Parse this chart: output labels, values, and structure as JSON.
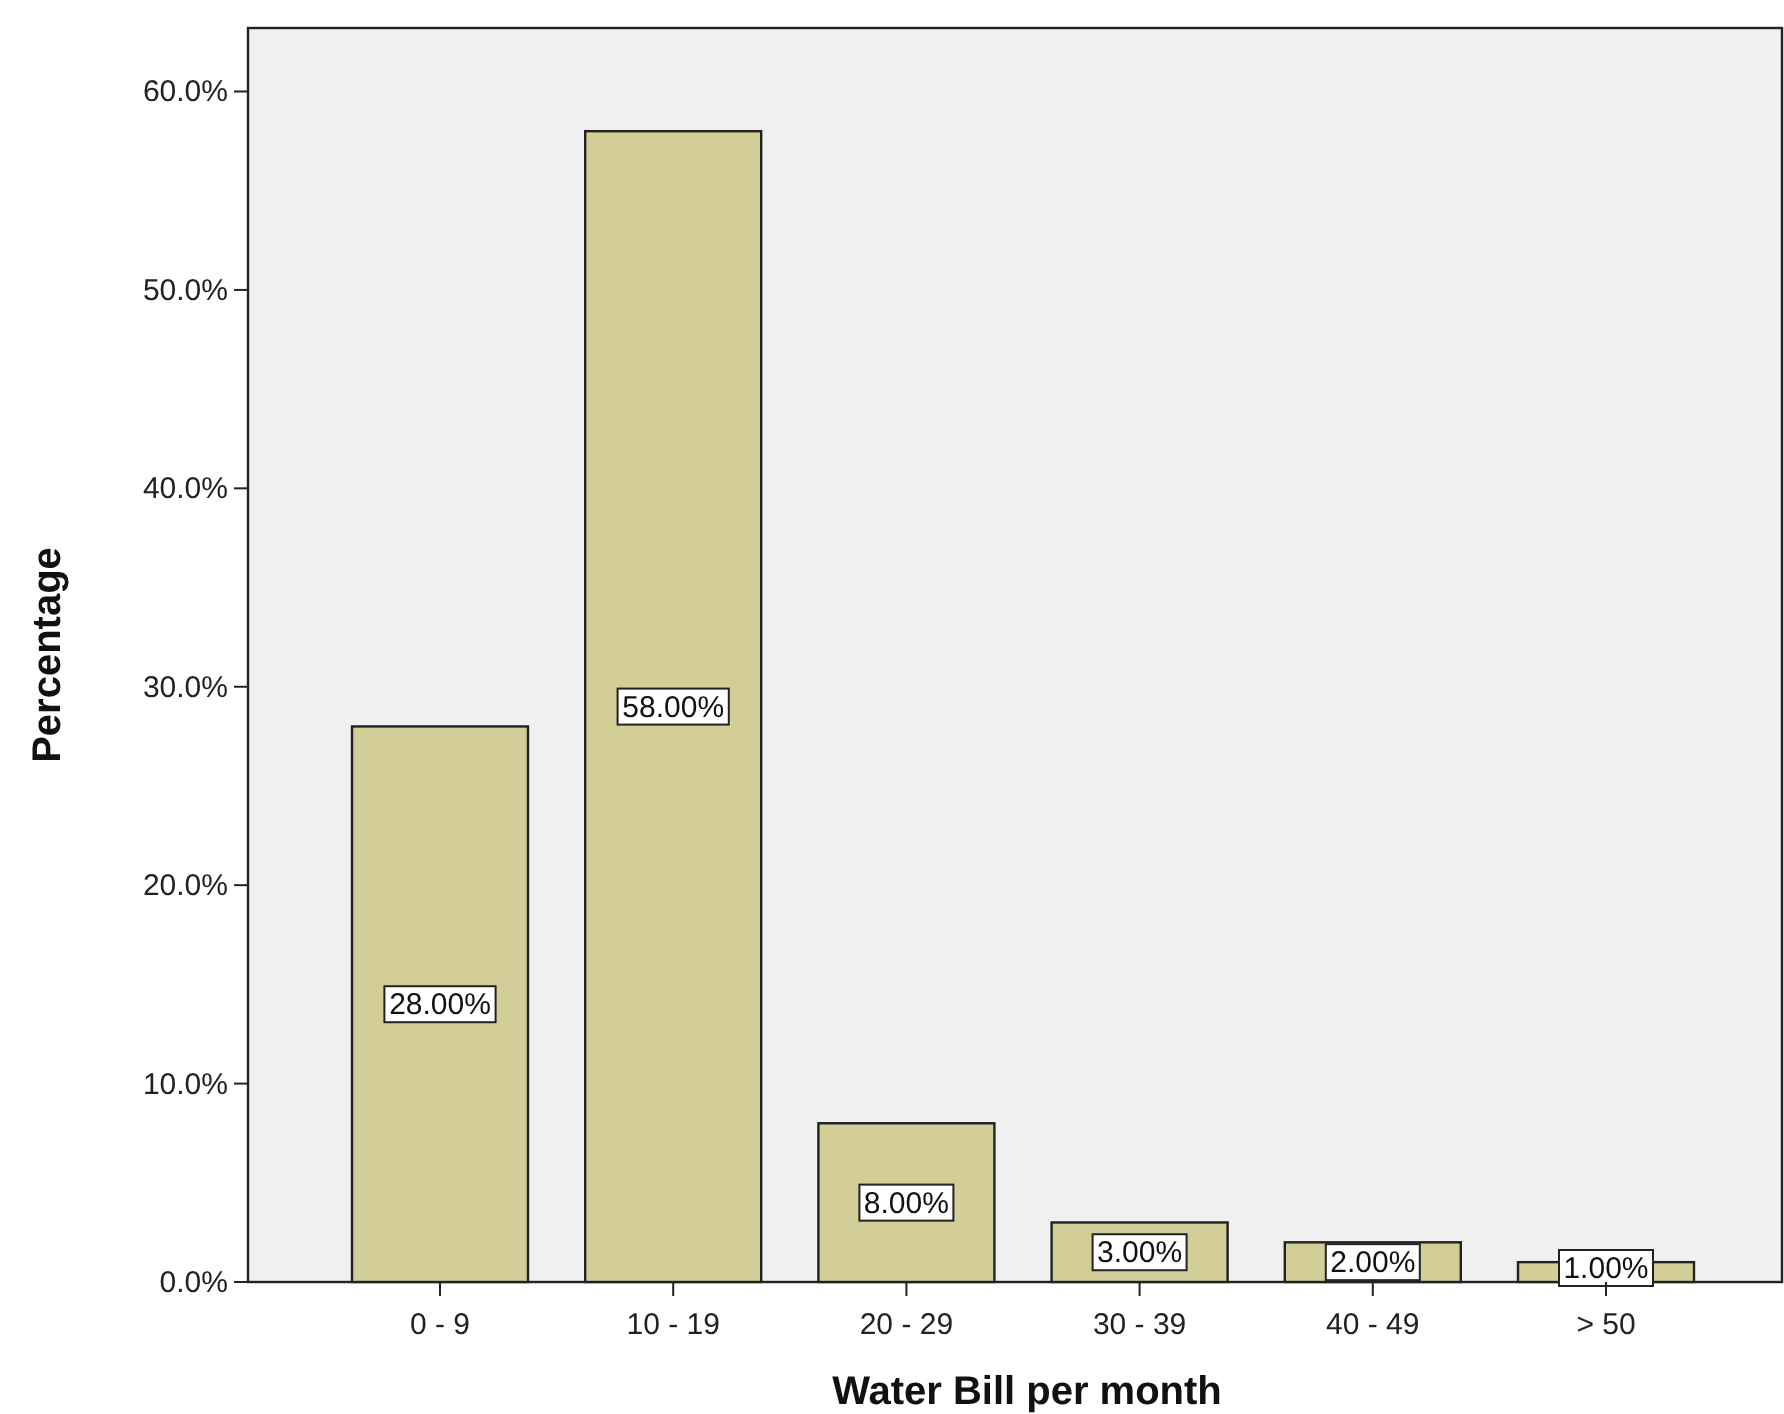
{
  "chart_data": {
    "type": "bar",
    "xlabel": "Water Bill per month",
    "ylabel": "Percentage",
    "categories": [
      "0 - 9",
      "10 - 19",
      "20 - 29",
      "30 - 39",
      "40 - 49",
      "> 50"
    ],
    "values": [
      28,
      58,
      8,
      3,
      2,
      1
    ],
    "value_labels": [
      "28.00%",
      "58.00%",
      "8.00%",
      "3.00%",
      "2.00%",
      "1.00%"
    ],
    "color": "#d3ce97",
    "ylim": [
      0,
      63.2
    ],
    "yticks": [
      {
        "value": 0,
        "label": "0.0%"
      },
      {
        "value": 10,
        "label": "10.0%"
      },
      {
        "value": 20,
        "label": "20.0%"
      },
      {
        "value": 30,
        "label": "30.0%"
      },
      {
        "value": 40,
        "label": "40.0%"
      },
      {
        "value": 50,
        "label": "50.0%"
      },
      {
        "value": 60,
        "label": "60.0%"
      }
    ],
    "grid": false
  }
}
